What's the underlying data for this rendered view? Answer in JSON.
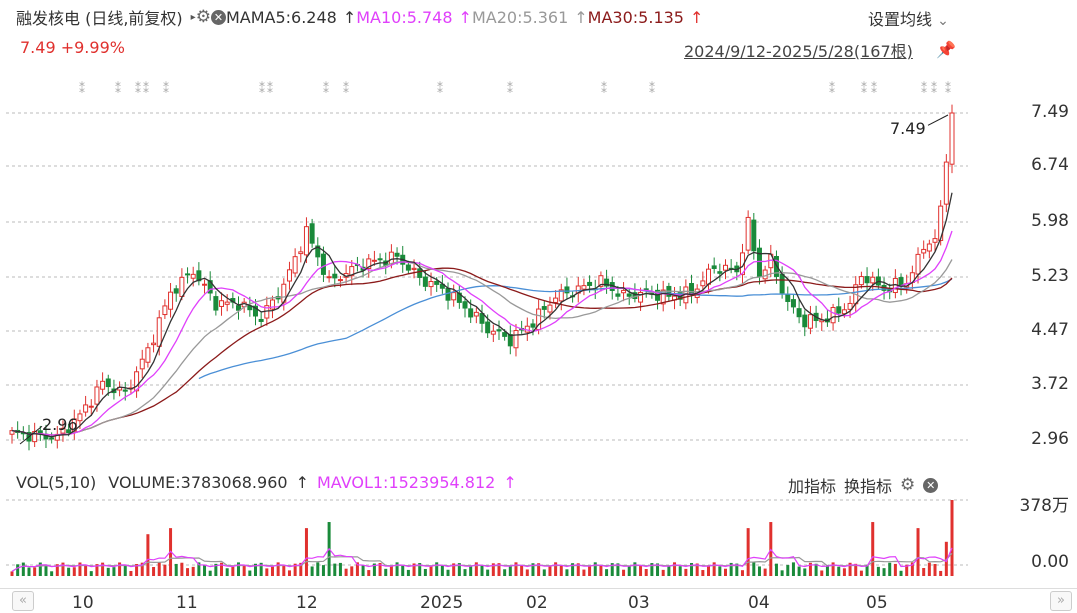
{
  "header": {
    "title": "融发核电 (日线,前复权)",
    "ma_label": "MA",
    "ma5": "MA5:6.248",
    "ma10": "MA10:5.748",
    "ma20": "MA20:5.361",
    "ma30": "MA30:5.135",
    "arrow": "↑",
    "settings": "设置均线",
    "settings_chevron": "⌄",
    "price_change": "7.49 +9.99%",
    "date_range": "2024/9/12-2025/5/28(167根)"
  },
  "price_axis": {
    "ticks": [
      "7.49",
      "6.74",
      "5.98",
      "5.23",
      "4.47",
      "3.72",
      "2.96"
    ]
  },
  "annotations": {
    "high_label": "7.49",
    "low_label": "2.96"
  },
  "volume_panel": {
    "label": "VOL(5,10)",
    "volume": "VOLUME:3783068.960",
    "volume_arrow": "↑",
    "mavol": "MAVOL1:1523954.812",
    "mavol_arrow": "↑",
    "add_indicator": "加指标",
    "switch_indicator": "换指标",
    "ticks": [
      "378万",
      "0.00"
    ]
  },
  "x_axis": {
    "labels": [
      "10",
      "11",
      "12",
      "2025",
      "02",
      "03",
      "04",
      "05"
    ],
    "prev": "«",
    "next": "»"
  },
  "colors": {
    "up": "#e0312e",
    "down": "#1a8a3a",
    "ma5": "#333333",
    "ma10": "#e040fb",
    "ma20": "#999999",
    "ma30": "#8b1a1a",
    "ma60": "#4a8fd6"
  },
  "icons": [
    "gear-icon",
    "close-icon",
    "pin-icon",
    "settings-chevron-icon",
    "triangle-right-icon"
  ]
}
